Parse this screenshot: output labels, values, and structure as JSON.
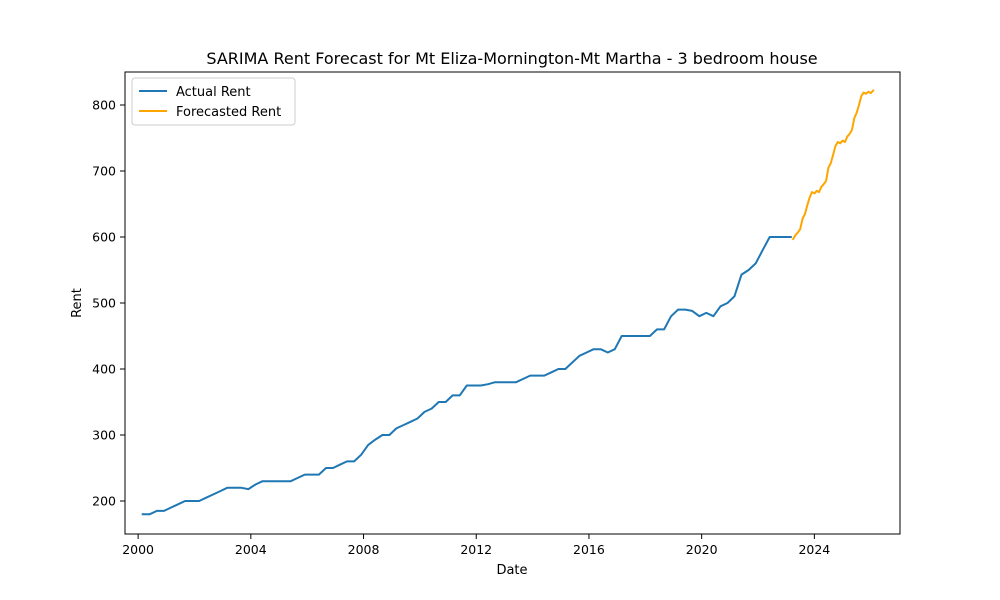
{
  "chart_data": {
    "type": "line",
    "title": "SARIMA Rent Forecast for Mt Eliza-Mornington-Mt Martha - 3 bedroom house",
    "xlabel": "Date",
    "ylabel": "Rent",
    "xlim": [
      "1999-07-15",
      "2027-01-15"
    ],
    "ylim": [
      150,
      850
    ],
    "x_ticks": [
      "2000",
      "2004",
      "2008",
      "2012",
      "2016",
      "2020",
      "2024"
    ],
    "y_ticks": [
      200,
      300,
      400,
      500,
      600,
      700,
      800
    ],
    "grid": false,
    "legend": {
      "placement": "top-left"
    },
    "series": [
      {
        "name": "Actual Rent",
        "color": "#1f77b4",
        "points": [
          [
            "2000-03-01",
            180
          ],
          [
            "2000-06-01",
            180
          ],
          [
            "2000-09-01",
            185
          ],
          [
            "2000-12-01",
            185
          ],
          [
            "2001-03-01",
            190
          ],
          [
            "2001-06-01",
            195
          ],
          [
            "2001-09-01",
            200
          ],
          [
            "2001-12-01",
            200
          ],
          [
            "2002-03-01",
            200
          ],
          [
            "2002-06-01",
            205
          ],
          [
            "2002-09-01",
            210
          ],
          [
            "2002-12-01",
            215
          ],
          [
            "2003-03-01",
            220
          ],
          [
            "2003-06-01",
            220
          ],
          [
            "2003-09-01",
            220
          ],
          [
            "2003-12-01",
            218
          ],
          [
            "2004-03-01",
            225
          ],
          [
            "2004-06-01",
            230
          ],
          [
            "2004-09-01",
            230
          ],
          [
            "2004-12-01",
            230
          ],
          [
            "2005-03-01",
            230
          ],
          [
            "2005-06-01",
            230
          ],
          [
            "2005-09-01",
            235
          ],
          [
            "2005-12-01",
            240
          ],
          [
            "2006-03-01",
            240
          ],
          [
            "2006-06-01",
            240
          ],
          [
            "2006-09-01",
            250
          ],
          [
            "2006-12-01",
            250
          ],
          [
            "2007-03-01",
            255
          ],
          [
            "2007-06-01",
            260
          ],
          [
            "2007-09-01",
            260
          ],
          [
            "2007-12-01",
            270
          ],
          [
            "2008-03-01",
            285
          ],
          [
            "2008-06-01",
            293
          ],
          [
            "2008-09-01",
            300
          ],
          [
            "2008-12-01",
            300
          ],
          [
            "2009-03-01",
            310
          ],
          [
            "2009-06-01",
            315
          ],
          [
            "2009-09-01",
            320
          ],
          [
            "2009-12-01",
            325
          ],
          [
            "2010-03-01",
            335
          ],
          [
            "2010-06-01",
            340
          ],
          [
            "2010-09-01",
            350
          ],
          [
            "2010-12-01",
            350
          ],
          [
            "2011-03-01",
            360
          ],
          [
            "2011-06-01",
            360
          ],
          [
            "2011-09-01",
            375
          ],
          [
            "2011-12-01",
            375
          ],
          [
            "2012-03-01",
            375
          ],
          [
            "2012-06-01",
            377
          ],
          [
            "2012-09-01",
            380
          ],
          [
            "2012-12-01",
            380
          ],
          [
            "2013-03-01",
            380
          ],
          [
            "2013-06-01",
            380
          ],
          [
            "2013-09-01",
            385
          ],
          [
            "2013-12-01",
            390
          ],
          [
            "2014-03-01",
            390
          ],
          [
            "2014-06-01",
            390
          ],
          [
            "2014-09-01",
            395
          ],
          [
            "2014-12-01",
            400
          ],
          [
            "2015-03-01",
            400
          ],
          [
            "2015-06-01",
            410
          ],
          [
            "2015-09-01",
            420
          ],
          [
            "2015-12-01",
            425
          ],
          [
            "2016-03-01",
            430
          ],
          [
            "2016-06-01",
            430
          ],
          [
            "2016-09-01",
            425
          ],
          [
            "2016-12-01",
            430
          ],
          [
            "2017-03-01",
            450
          ],
          [
            "2017-06-01",
            450
          ],
          [
            "2017-09-01",
            450
          ],
          [
            "2017-12-01",
            450
          ],
          [
            "2018-03-01",
            450
          ],
          [
            "2018-06-01",
            460
          ],
          [
            "2018-09-01",
            460
          ],
          [
            "2018-12-01",
            480
          ],
          [
            "2019-03-01",
            490
          ],
          [
            "2019-06-01",
            490
          ],
          [
            "2019-09-01",
            488
          ],
          [
            "2019-12-01",
            480
          ],
          [
            "2020-03-01",
            485
          ],
          [
            "2020-06-01",
            480
          ],
          [
            "2020-09-01",
            495
          ],
          [
            "2020-12-01",
            500
          ],
          [
            "2021-03-01",
            510
          ],
          [
            "2021-06-01",
            543
          ],
          [
            "2021-09-01",
            550
          ],
          [
            "2021-12-01",
            560
          ],
          [
            "2022-03-01",
            580
          ],
          [
            "2022-06-01",
            600
          ],
          [
            "2022-09-01",
            600
          ],
          [
            "2022-12-01",
            600
          ],
          [
            "2023-03-01",
            600
          ]
        ]
      },
      {
        "name": "Forecasted Rent",
        "color": "#ffa500",
        "points": [
          [
            "2023-04-01",
            597
          ],
          [
            "2023-05-01",
            603
          ],
          [
            "2023-06-01",
            607
          ],
          [
            "2023-07-01",
            612
          ],
          [
            "2023-08-01",
            628
          ],
          [
            "2023-09-01",
            635
          ],
          [
            "2023-10-01",
            648
          ],
          [
            "2023-11-01",
            660
          ],
          [
            "2023-12-01",
            668
          ],
          [
            "2024-01-01",
            666
          ],
          [
            "2024-02-01",
            670
          ],
          [
            "2024-03-01",
            668
          ],
          [
            "2024-04-01",
            676
          ],
          [
            "2024-05-01",
            680
          ],
          [
            "2024-06-01",
            685
          ],
          [
            "2024-07-01",
            705
          ],
          [
            "2024-08-01",
            712
          ],
          [
            "2024-09-01",
            725
          ],
          [
            "2024-10-01",
            738
          ],
          [
            "2024-11-01",
            744
          ],
          [
            "2024-12-01",
            742
          ],
          [
            "2025-01-01",
            746
          ],
          [
            "2025-02-01",
            744
          ],
          [
            "2025-03-01",
            752
          ],
          [
            "2025-04-01",
            756
          ],
          [
            "2025-05-01",
            762
          ],
          [
            "2025-06-01",
            780
          ],
          [
            "2025-07-01",
            788
          ],
          [
            "2025-08-01",
            800
          ],
          [
            "2025-09-01",
            814
          ],
          [
            "2025-10-01",
            819
          ],
          [
            "2025-11-01",
            817
          ],
          [
            "2025-12-01",
            820
          ],
          [
            "2026-01-01",
            818
          ],
          [
            "2026-02-01",
            822
          ]
        ]
      }
    ]
  }
}
